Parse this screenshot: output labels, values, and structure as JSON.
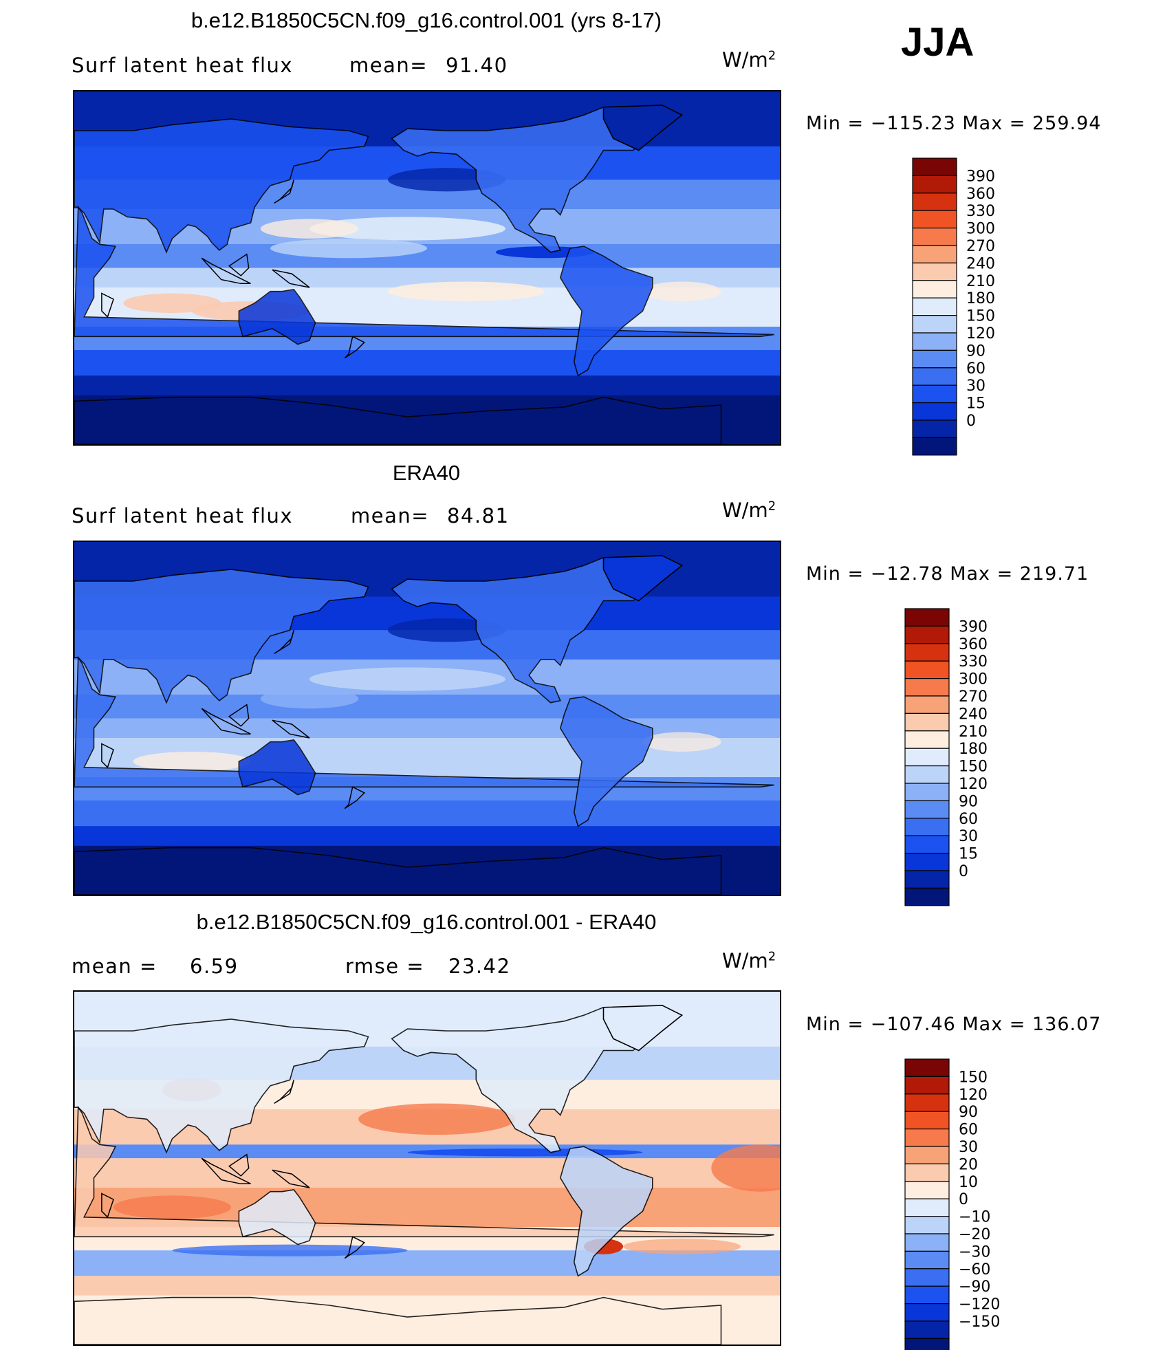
{
  "season": "JJA",
  "colors": {
    "abs_scale": [
      "#021679",
      "#0425a8",
      "#0836d8",
      "#1b52f0",
      "#3a6ff2",
      "#5a8cf4",
      "#8cb1f6",
      "#bcd4f8",
      "#e0ecfb",
      "#fdeee0",
      "#fbcbb0",
      "#f8a278",
      "#f67a4c",
      "#f05424",
      "#d63210",
      "#b01a06",
      "#7a0505"
    ],
    "diff_scale": [
      "#021679",
      "#0425a8",
      "#0836d8",
      "#1b52f0",
      "#3a6ff2",
      "#5a8cf4",
      "#8cb1f6",
      "#bcd4f8",
      "#e0ecfb",
      "#fdeee0",
      "#fbcbb0",
      "#f8a278",
      "#f67a4c",
      "#f05424",
      "#d63210",
      "#b01a06",
      "#7a0505"
    ]
  },
  "panels": [
    {
      "title": "b.e12.B1850C5CN.f09_g16.control.001 (yrs 8-17)",
      "left_label": "Surf  latent  heat  flux",
      "stat_label": "mean=",
      "stat_value": "91.40",
      "units": "W/m",
      "units_exp": "2",
      "min_max": "Min  =  −115.23  Max  =  259.94"
    },
    {
      "title": "ERA40",
      "left_label": "Surf  latent  heat  flux",
      "stat_label": "mean=",
      "stat_value": "84.81",
      "units": "W/m",
      "units_exp": "2",
      "min_max": "Min  =  −12.78  Max  =  219.71"
    },
    {
      "title": "b.e12.B1850C5CN.f09_g16.control.001 - ERA40",
      "left_label": "mean  =",
      "left_value": "6.59",
      "stat_label": "rmse  =",
      "stat_value": "23.42",
      "units": "W/m",
      "units_exp": "2",
      "min_max": "Min  =  −107.46  Max  =  136.07"
    }
  ],
  "chart_data": [
    {
      "type": "heatmap",
      "title": "b.e12.B1850C5CN.f09_g16.control.001 (yrs 8-17)",
      "variable": "Surf latent heat flux",
      "units": "W/m2",
      "mean": 91.4,
      "min": -115.23,
      "max": 259.94,
      "colorbar_levels": [
        "390",
        "360",
        "330",
        "300",
        "270",
        "240",
        "210",
        "180",
        "150",
        "120",
        "90",
        "60",
        "30",
        "15",
        "0"
      ]
    },
    {
      "type": "heatmap",
      "title": "ERA40",
      "variable": "Surf latent heat flux",
      "units": "W/m2",
      "mean": 84.81,
      "min": -12.78,
      "max": 219.71,
      "colorbar_levels": [
        "390",
        "360",
        "330",
        "300",
        "270",
        "240",
        "210",
        "180",
        "150",
        "120",
        "90",
        "60",
        "30",
        "15",
        "0"
      ]
    },
    {
      "type": "heatmap",
      "title": "b.e12.B1850C5CN.f09_g16.control.001 - ERA40",
      "units": "W/m2",
      "mean": 6.59,
      "rmse": 23.42,
      "min": -107.46,
      "max": 136.07,
      "colorbar_levels": [
        "150",
        "120",
        "90",
        "60",
        "30",
        "20",
        "10",
        "0",
        "−10",
        "−20",
        "−30",
        "−60",
        "−90",
        "−120",
        "−150"
      ]
    }
  ]
}
